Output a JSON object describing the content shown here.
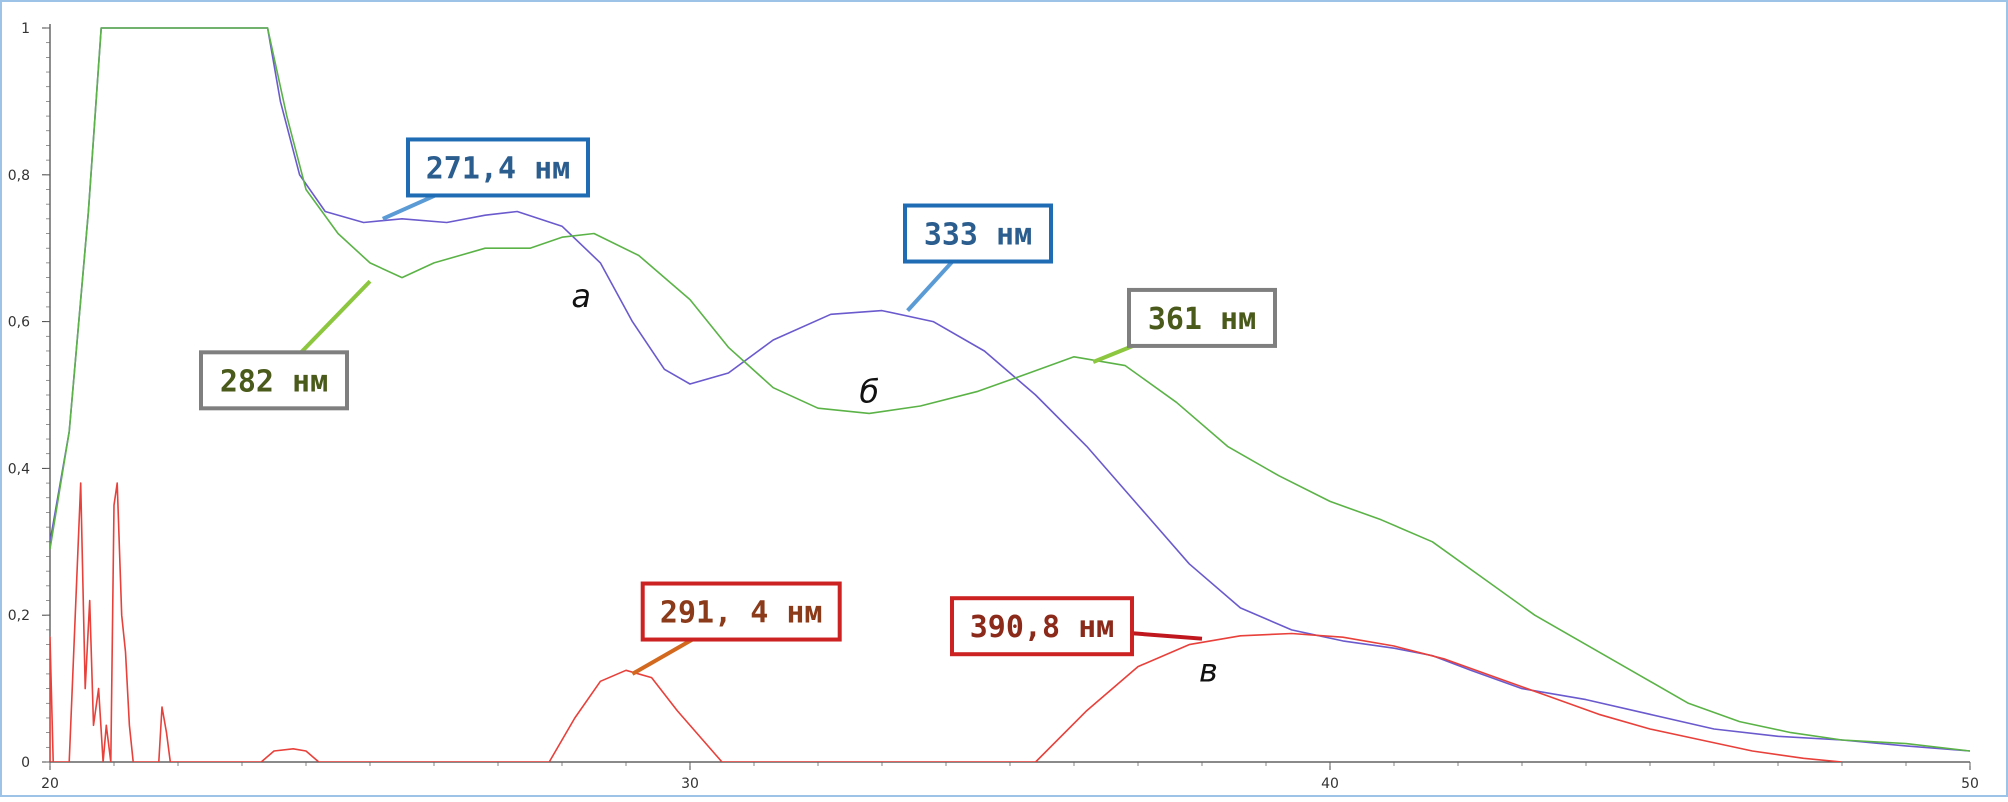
{
  "chart_data": {
    "type": "line",
    "xlim": [
      20,
      50
    ],
    "ylim": [
      0,
      1
    ],
    "x_ticks": [
      "20",
      "30",
      "40",
      "50"
    ],
    "y_ticks": [
      "0",
      "0,2",
      "0,4",
      "0,6",
      "0,8",
      "1"
    ],
    "grid": false,
    "legend": "none",
    "series": [
      {
        "color": "#6a5acd",
        "points": [
          [
            20,
            0.3
          ],
          [
            20.3,
            0.45
          ],
          [
            20.6,
            0.75
          ],
          [
            20.8,
            1.0
          ],
          [
            23.4,
            1.0
          ],
          [
            23.6,
            0.9
          ],
          [
            23.9,
            0.8
          ],
          [
            24.3,
            0.75
          ],
          [
            24.9,
            0.735
          ],
          [
            25.5,
            0.74
          ],
          [
            26.2,
            0.735
          ],
          [
            26.8,
            0.745
          ],
          [
            27.3,
            0.75
          ],
          [
            28,
            0.73
          ],
          [
            28.6,
            0.68
          ],
          [
            29.1,
            0.6
          ],
          [
            29.6,
            0.535
          ],
          [
            30,
            0.515
          ],
          [
            30.6,
            0.53
          ],
          [
            31.3,
            0.575
          ],
          [
            32.2,
            0.61
          ],
          [
            33,
            0.615
          ],
          [
            33.8,
            0.6
          ],
          [
            34.6,
            0.56
          ],
          [
            35.4,
            0.5
          ],
          [
            36.2,
            0.43
          ],
          [
            37,
            0.35
          ],
          [
            37.8,
            0.27
          ],
          [
            38.6,
            0.21
          ],
          [
            39.4,
            0.18
          ],
          [
            40.2,
            0.165
          ],
          [
            41,
            0.155
          ],
          [
            41.6,
            0.145
          ],
          [
            42.2,
            0.125
          ],
          [
            43,
            0.1
          ],
          [
            44,
            0.085
          ],
          [
            45,
            0.065
          ],
          [
            46,
            0.045
          ],
          [
            47,
            0.035
          ],
          [
            48,
            0.03
          ],
          [
            49,
            0.022
          ],
          [
            50,
            0.015
          ]
        ]
      },
      {
        "color": "#5bb347",
        "points": [
          [
            20,
            0.29
          ],
          [
            20.3,
            0.45
          ],
          [
            20.6,
            0.75
          ],
          [
            20.8,
            1.0
          ],
          [
            23.4,
            1.0
          ],
          [
            23.7,
            0.88
          ],
          [
            24,
            0.78
          ],
          [
            24.5,
            0.72
          ],
          [
            25,
            0.68
          ],
          [
            25.5,
            0.66
          ],
          [
            26,
            0.68
          ],
          [
            26.8,
            0.7
          ],
          [
            27.5,
            0.7
          ],
          [
            28,
            0.715
          ],
          [
            28.5,
            0.72
          ],
          [
            29.2,
            0.69
          ],
          [
            30,
            0.63
          ],
          [
            30.6,
            0.565
          ],
          [
            31.3,
            0.51
          ],
          [
            32,
            0.482
          ],
          [
            32.8,
            0.475
          ],
          [
            33.6,
            0.485
          ],
          [
            34.5,
            0.505
          ],
          [
            35.3,
            0.53
          ],
          [
            36,
            0.552
          ],
          [
            36.8,
            0.54
          ],
          [
            37.6,
            0.49
          ],
          [
            38.4,
            0.43
          ],
          [
            39.2,
            0.39
          ],
          [
            40,
            0.355
          ],
          [
            40.8,
            0.33
          ],
          [
            41.6,
            0.3
          ],
          [
            42.4,
            0.25
          ],
          [
            43.2,
            0.2
          ],
          [
            44,
            0.16
          ],
          [
            44.8,
            0.12
          ],
          [
            45.6,
            0.08
          ],
          [
            46.4,
            0.055
          ],
          [
            47.2,
            0.04
          ],
          [
            48,
            0.03
          ],
          [
            49,
            0.025
          ],
          [
            50,
            0.015
          ]
        ]
      },
      {
        "color": "#e8403a",
        "points": [
          [
            20,
            0.0
          ],
          [
            20,
            0.17
          ],
          [
            20.05,
            0.0
          ],
          [
            20.3,
            0.0
          ],
          [
            20.48,
            0.38
          ],
          [
            20.55,
            0.1
          ],
          [
            20.62,
            0.22
          ],
          [
            20.68,
            0.05
          ],
          [
            20.76,
            0.1
          ],
          [
            20.83,
            0.0
          ],
          [
            20.88,
            0.05
          ],
          [
            20.95,
            0.0
          ],
          [
            21.0,
            0.35
          ],
          [
            21.05,
            0.38
          ],
          [
            21.12,
            0.2
          ],
          [
            21.18,
            0.15
          ],
          [
            21.24,
            0.05
          ],
          [
            21.3,
            0.0
          ],
          [
            21.7,
            0.0
          ],
          [
            21.75,
            0.075
          ],
          [
            21.82,
            0.04
          ],
          [
            21.88,
            0.0
          ],
          [
            23.3,
            0.0
          ],
          [
            23.5,
            0.015
          ],
          [
            23.8,
            0.018
          ],
          [
            24.0,
            0.015
          ],
          [
            24.2,
            0.0
          ],
          [
            27.8,
            0.0
          ],
          [
            28.2,
            0.06
          ],
          [
            28.6,
            0.11
          ],
          [
            29.0,
            0.125
          ],
          [
            29.4,
            0.115
          ],
          [
            29.8,
            0.07
          ],
          [
            30.2,
            0.03
          ],
          [
            30.5,
            0.0
          ],
          [
            35.4,
            0.0
          ],
          [
            36.2,
            0.07
          ],
          [
            37,
            0.13
          ],
          [
            37.8,
            0.16
          ],
          [
            38.6,
            0.172
          ],
          [
            39.4,
            0.175
          ],
          [
            40.2,
            0.17
          ],
          [
            41,
            0.158
          ],
          [
            41.8,
            0.14
          ],
          [
            42.6,
            0.115
          ],
          [
            43.4,
            0.09
          ],
          [
            44.2,
            0.065
          ],
          [
            45,
            0.045
          ],
          [
            45.8,
            0.03
          ],
          [
            46.6,
            0.015
          ],
          [
            47.4,
            0.005
          ],
          [
            48,
            0.0
          ]
        ]
      }
    ],
    "curve_labels": [
      {
        "text": "а",
        "x": 28.3,
        "y": 0.62
      },
      {
        "text": "б",
        "x": 32.8,
        "y": 0.49
      },
      {
        "text": "в",
        "x": 38.1,
        "y": 0.11
      }
    ],
    "callouts": [
      {
        "text": "271,4 нм",
        "point": [
          25.2,
          0.74
        ],
        "box_anchor": [
          27.0,
          0.81
        ],
        "box_color": "#1f6cb5",
        "line_color": "#5b9bd5",
        "text_color": "#2b5d8e"
      },
      {
        "text": "333 нм",
        "point": [
          33.4,
          0.615
        ],
        "box_anchor": [
          34.5,
          0.72
        ],
        "box_color": "#1f6cb5",
        "line_color": "#5b9bd5",
        "text_color": "#2b5d8e"
      },
      {
        "text": "361 нм",
        "point": [
          36.3,
          0.545
        ],
        "box_anchor": [
          38.0,
          0.605
        ],
        "box_color": "#7f7f7f",
        "line_color": "#8dc63f",
        "text_color": "#4a5a1a"
      },
      {
        "text": "282 нм",
        "point": [
          25.0,
          0.655
        ],
        "box_anchor": [
          23.5,
          0.52
        ],
        "box_color": "#7f7f7f",
        "line_color": "#8dc63f",
        "text_color": "#4a5a1a"
      },
      {
        "text": "291, 4 нм",
        "point": [
          29.1,
          0.12
        ],
        "box_anchor": [
          30.8,
          0.205
        ],
        "box_color": "#cc2222",
        "line_color": "#d2691e",
        "text_color": "#8b3a1a"
      },
      {
        "text": "390,8 нм",
        "point": [
          38.0,
          0.168
        ],
        "box_anchor": [
          35.5,
          0.185
        ],
        "box_color": "#cc2222",
        "line_color": "#c0171f",
        "text_color": "#8b2a1a"
      }
    ]
  }
}
